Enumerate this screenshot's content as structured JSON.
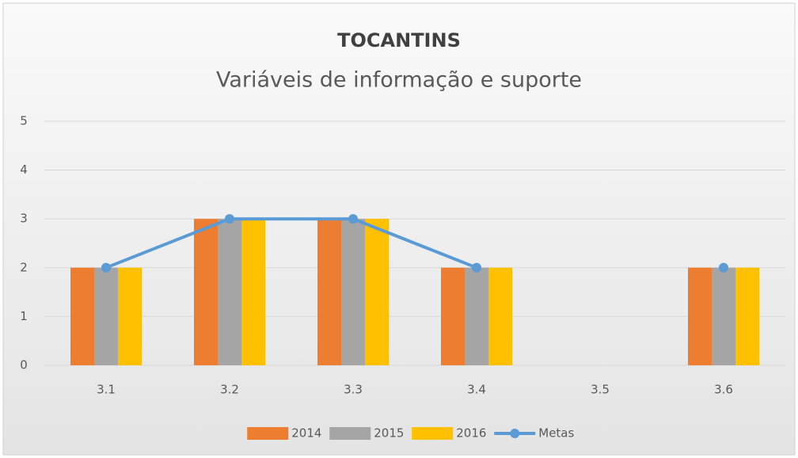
{
  "chart_data": {
    "type": "bar",
    "title": "TOCANTINS",
    "subtitle": "Variáveis de informação e suporte",
    "categories": [
      "3.1",
      "3.2",
      "3.3",
      "3.4",
      "3.5",
      "3.6"
    ],
    "series": [
      {
        "name": "2014",
        "color": "#ed7d31",
        "values": [
          2,
          3,
          3,
          2,
          0,
          2
        ]
      },
      {
        "name": "2015",
        "color": "#a5a5a5",
        "values": [
          2,
          3,
          3,
          2,
          0,
          2
        ]
      },
      {
        "name": "2016",
        "color": "#ffc000",
        "values": [
          2,
          3,
          3,
          2,
          0,
          2
        ]
      },
      {
        "name": "Metas",
        "color": "#5b9bd5",
        "type": "line",
        "values": [
          2,
          3,
          3,
          2,
          null,
          2
        ]
      }
    ],
    "ylim": [
      0,
      5
    ],
    "yticks": [
      0,
      1,
      2,
      3,
      4,
      5
    ],
    "grid": true,
    "legend": "bottom"
  }
}
